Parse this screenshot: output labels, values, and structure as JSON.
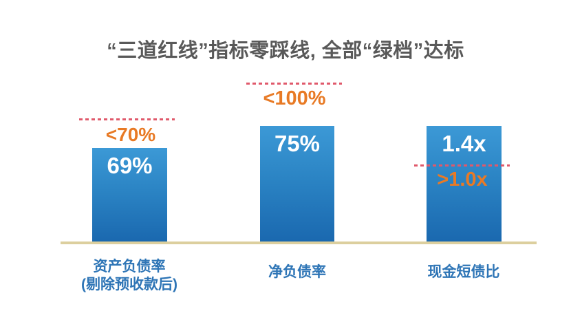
{
  "page": {
    "title": "“三道红线”指标零踩线, 全部“绿档”达标"
  },
  "colors": {
    "title_text": "#595959",
    "bar_top": "#3C99D6",
    "bar_bottom": "#1A68AF",
    "threshold_text": "#E87A25",
    "dashed_line": "#E0596B",
    "category_text": "#2E75B6",
    "baseline": "#DCCF9E",
    "value_text": "#FFFFFF"
  },
  "chart_data": {
    "type": "bar",
    "title": "“三道红线”指标零踩线, 全部“绿档”达标",
    "categories": [
      "资产负债率 (剔除预收款后)",
      "净负债率",
      "现金短债比"
    ],
    "values": [
      69,
      75,
      1.4
    ],
    "value_labels": [
      "69%",
      "75%",
      "1.4x"
    ],
    "thresholds": [
      70,
      100,
      1.0
    ],
    "threshold_labels": [
      "<70%",
      "<100%",
      ">1.0x"
    ],
    "threshold_line_style": "red-dashed",
    "threshold_positions": [
      "above-bar",
      "above-bar",
      "crossing-bar"
    ],
    "xlabel": "",
    "ylabel": "",
    "grid": false,
    "legend": false
  },
  "bars": [
    {
      "value_label": "69%",
      "threshold_label": "<70%",
      "category_line1": "资产负债率",
      "category_line2": "(剔除预收款后)"
    },
    {
      "value_label": "75%",
      "threshold_label": "<100%",
      "category_line1": "净负债率",
      "category_line2": ""
    },
    {
      "value_label": "1.4x",
      "threshold_label": ">1.0x",
      "category_line1": "现金短债比",
      "category_line2": ""
    }
  ]
}
